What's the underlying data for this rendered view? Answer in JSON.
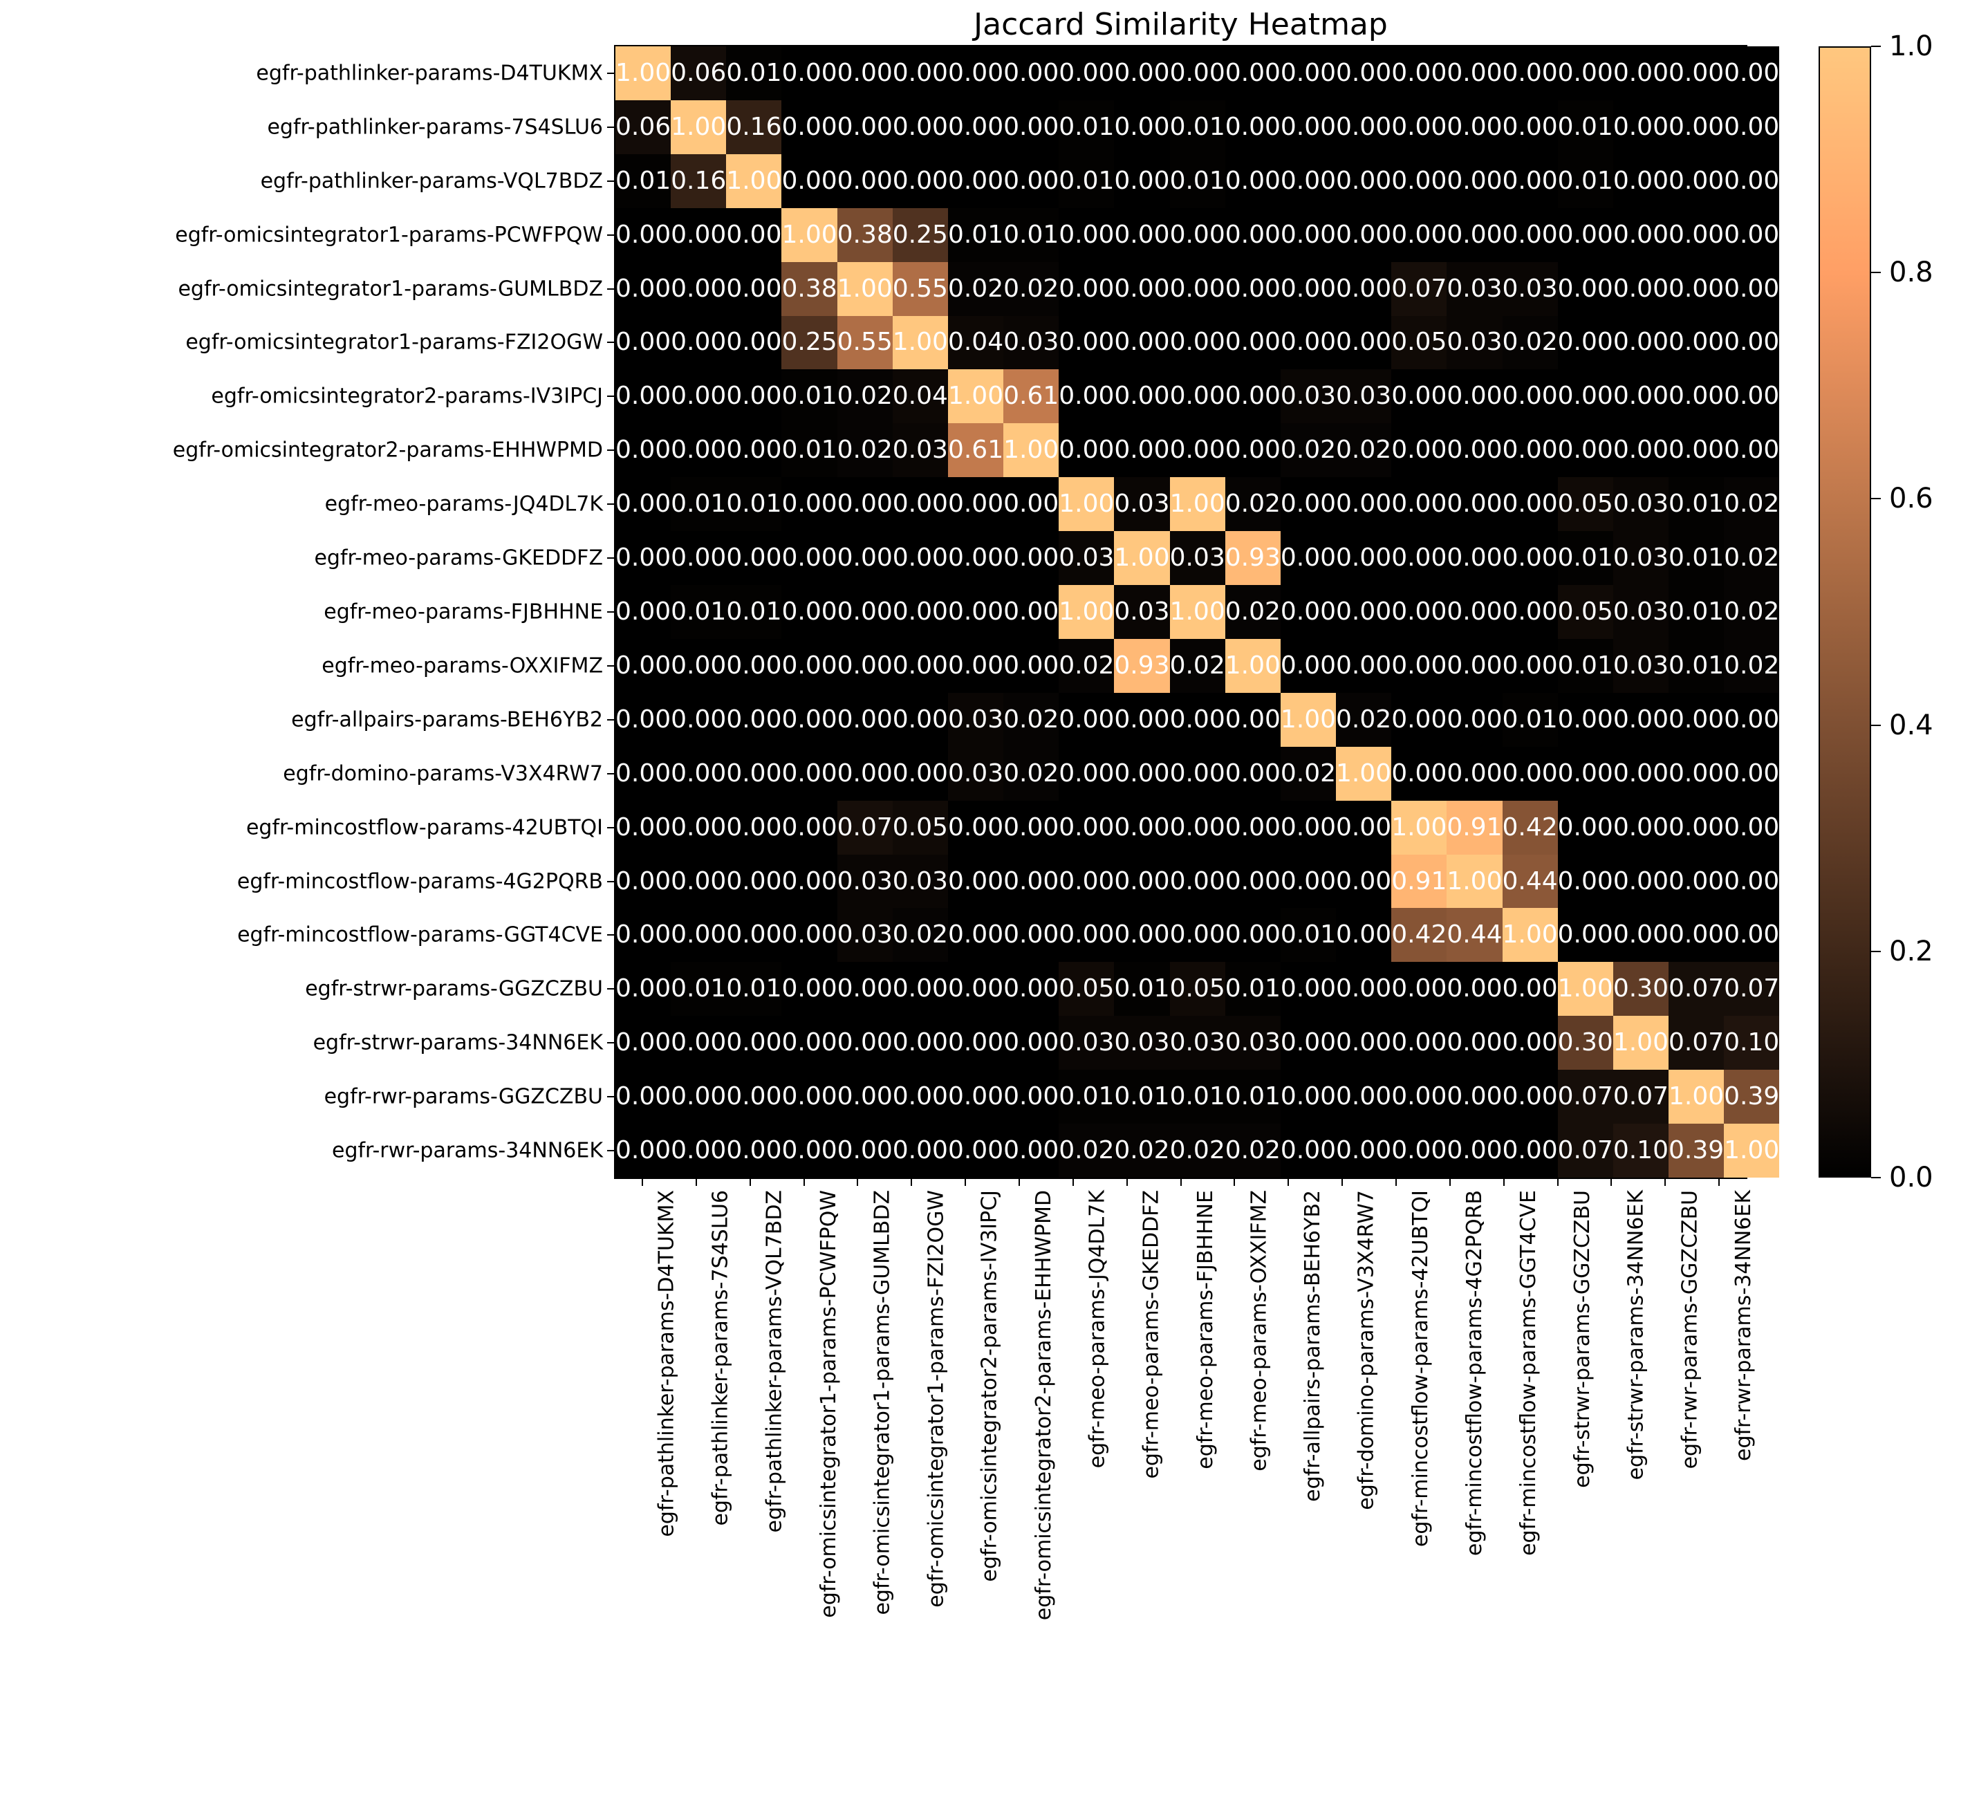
{
  "chart_data": {
    "type": "heatmap",
    "title": "Jaccard Similarity Heatmap",
    "labels": [
      "egfr-pathlinker-params-D4TUKMX",
      "egfr-pathlinker-params-7S4SLU6",
      "egfr-pathlinker-params-VQL7BDZ",
      "egfr-omicsintegrator1-params-PCWFPQW",
      "egfr-omicsintegrator1-params-GUMLBDZ",
      "egfr-omicsintegrator1-params-FZI2OGW",
      "egfr-omicsintegrator2-params-IV3IPCJ",
      "egfr-omicsintegrator2-params-EHHWPMD",
      "egfr-meo-params-JQ4DL7K",
      "egfr-meo-params-GKEDDFZ",
      "egfr-meo-params-FJBHHNE",
      "egfr-meo-params-OXXIFMZ",
      "egfr-allpairs-params-BEH6YB2",
      "egfr-domino-params-V3X4RW7",
      "egfr-mincostflow-params-42UBTQI",
      "egfr-mincostflow-params-4G2PQRB",
      "egfr-mincostflow-params-GGT4CVE",
      "egfr-strwr-params-GGZCZBU",
      "egfr-strwr-params-34NN6EK",
      "egfr-rwr-params-GGZCZBU",
      "egfr-rwr-params-34NN6EK"
    ],
    "matrix": [
      [
        1.0,
        0.06,
        0.01,
        0.0,
        0.0,
        0.0,
        0.0,
        0.0,
        0.0,
        0.0,
        0.0,
        0.0,
        0.0,
        0.0,
        0.0,
        0.0,
        0.0,
        0.0,
        0.0,
        0.0,
        0.0
      ],
      [
        0.06,
        1.0,
        0.16,
        0.0,
        0.0,
        0.0,
        0.0,
        0.0,
        0.01,
        0.0,
        0.01,
        0.0,
        0.0,
        0.0,
        0.0,
        0.0,
        0.0,
        0.01,
        0.0,
        0.0,
        0.0
      ],
      [
        0.01,
        0.16,
        1.0,
        0.0,
        0.0,
        0.0,
        0.0,
        0.0,
        0.01,
        0.0,
        0.01,
        0.0,
        0.0,
        0.0,
        0.0,
        0.0,
        0.0,
        0.01,
        0.0,
        0.0,
        0.0
      ],
      [
        0.0,
        0.0,
        0.0,
        1.0,
        0.38,
        0.25,
        0.01,
        0.01,
        0.0,
        0.0,
        0.0,
        0.0,
        0.0,
        0.0,
        0.0,
        0.0,
        0.0,
        0.0,
        0.0,
        0.0,
        0.0
      ],
      [
        0.0,
        0.0,
        0.0,
        0.38,
        1.0,
        0.55,
        0.02,
        0.02,
        0.0,
        0.0,
        0.0,
        0.0,
        0.0,
        0.0,
        0.07,
        0.03,
        0.03,
        0.0,
        0.0,
        0.0,
        0.0
      ],
      [
        0.0,
        0.0,
        0.0,
        0.25,
        0.55,
        1.0,
        0.04,
        0.03,
        0.0,
        0.0,
        0.0,
        0.0,
        0.0,
        0.0,
        0.05,
        0.03,
        0.02,
        0.0,
        0.0,
        0.0,
        0.0
      ],
      [
        0.0,
        0.0,
        0.0,
        0.01,
        0.02,
        0.04,
        1.0,
        0.61,
        0.0,
        0.0,
        0.0,
        0.0,
        0.03,
        0.03,
        0.0,
        0.0,
        0.0,
        0.0,
        0.0,
        0.0,
        0.0
      ],
      [
        0.0,
        0.0,
        0.0,
        0.01,
        0.02,
        0.03,
        0.61,
        1.0,
        0.0,
        0.0,
        0.0,
        0.0,
        0.02,
        0.02,
        0.0,
        0.0,
        0.0,
        0.0,
        0.0,
        0.0,
        0.0
      ],
      [
        0.0,
        0.01,
        0.01,
        0.0,
        0.0,
        0.0,
        0.0,
        0.0,
        1.0,
        0.03,
        1.0,
        0.02,
        0.0,
        0.0,
        0.0,
        0.0,
        0.0,
        0.05,
        0.03,
        0.01,
        0.02
      ],
      [
        0.0,
        0.0,
        0.0,
        0.0,
        0.0,
        0.0,
        0.0,
        0.0,
        0.03,
        1.0,
        0.03,
        0.93,
        0.0,
        0.0,
        0.0,
        0.0,
        0.0,
        0.01,
        0.03,
        0.01,
        0.02
      ],
      [
        0.0,
        0.01,
        0.01,
        0.0,
        0.0,
        0.0,
        0.0,
        0.0,
        1.0,
        0.03,
        1.0,
        0.02,
        0.0,
        0.0,
        0.0,
        0.0,
        0.0,
        0.05,
        0.03,
        0.01,
        0.02
      ],
      [
        0.0,
        0.0,
        0.0,
        0.0,
        0.0,
        0.0,
        0.0,
        0.0,
        0.02,
        0.93,
        0.02,
        1.0,
        0.0,
        0.0,
        0.0,
        0.0,
        0.0,
        0.01,
        0.03,
        0.01,
        0.02
      ],
      [
        0.0,
        0.0,
        0.0,
        0.0,
        0.0,
        0.0,
        0.03,
        0.02,
        0.0,
        0.0,
        0.0,
        0.0,
        1.0,
        0.02,
        0.0,
        0.0,
        0.01,
        0.0,
        0.0,
        0.0,
        0.0
      ],
      [
        0.0,
        0.0,
        0.0,
        0.0,
        0.0,
        0.0,
        0.03,
        0.02,
        0.0,
        0.0,
        0.0,
        0.0,
        0.02,
        1.0,
        0.0,
        0.0,
        0.0,
        0.0,
        0.0,
        0.0,
        0.0
      ],
      [
        0.0,
        0.0,
        0.0,
        0.0,
        0.07,
        0.05,
        0.0,
        0.0,
        0.0,
        0.0,
        0.0,
        0.0,
        0.0,
        0.0,
        1.0,
        0.91,
        0.42,
        0.0,
        0.0,
        0.0,
        0.0
      ],
      [
        0.0,
        0.0,
        0.0,
        0.0,
        0.03,
        0.03,
        0.0,
        0.0,
        0.0,
        0.0,
        0.0,
        0.0,
        0.0,
        0.0,
        0.91,
        1.0,
        0.44,
        0.0,
        0.0,
        0.0,
        0.0
      ],
      [
        0.0,
        0.0,
        0.0,
        0.0,
        0.03,
        0.02,
        0.0,
        0.0,
        0.0,
        0.0,
        0.0,
        0.0,
        0.01,
        0.0,
        0.42,
        0.44,
        1.0,
        0.0,
        0.0,
        0.0,
        0.0
      ],
      [
        0.0,
        0.01,
        0.01,
        0.0,
        0.0,
        0.0,
        0.0,
        0.0,
        0.05,
        0.01,
        0.05,
        0.01,
        0.0,
        0.0,
        0.0,
        0.0,
        0.0,
        1.0,
        0.3,
        0.07,
        0.07
      ],
      [
        0.0,
        0.0,
        0.0,
        0.0,
        0.0,
        0.0,
        0.0,
        0.0,
        0.03,
        0.03,
        0.03,
        0.03,
        0.0,
        0.0,
        0.0,
        0.0,
        0.0,
        0.3,
        1.0,
        0.07,
        0.1
      ],
      [
        0.0,
        0.0,
        0.0,
        0.0,
        0.0,
        0.0,
        0.0,
        0.0,
        0.01,
        0.01,
        0.01,
        0.01,
        0.0,
        0.0,
        0.0,
        0.0,
        0.0,
        0.07,
        0.07,
        1.0,
        0.39
      ],
      [
        0.0,
        0.0,
        0.0,
        0.0,
        0.0,
        0.0,
        0.0,
        0.0,
        0.02,
        0.02,
        0.02,
        0.02,
        0.0,
        0.0,
        0.0,
        0.0,
        0.0,
        0.07,
        0.1,
        0.39,
        1.0
      ]
    ],
    "vmin": 0.0,
    "vmax": 1.0,
    "colormap": "copper",
    "colors": {
      "low": "#000000",
      "high": "#ffc77f",
      "annotation": "#ffffff"
    },
    "colorbar_tick_labels": [
      "0.0",
      "0.2",
      "0.4",
      "0.6",
      "0.8",
      "1.0"
    ],
    "grid": "off",
    "legend": "colorbar-right"
  }
}
